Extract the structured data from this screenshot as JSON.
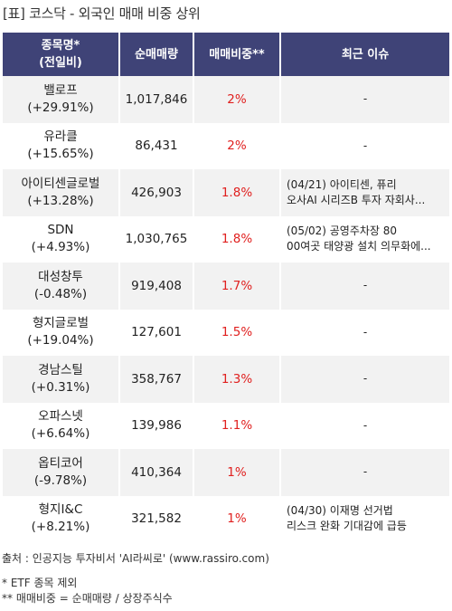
{
  "title": "[표] 코스닥 - 외국인 매매 비중 상위",
  "headers": {
    "name_line1": "종목명*",
    "name_line2": "(전일비)",
    "volume": "순매매량",
    "ratio": "매매비중**",
    "issue": "최근 이슈"
  },
  "rows": [
    {
      "name": "밸로프",
      "change": "(+29.91%)",
      "volume": "1,017,846",
      "ratio": "2%",
      "issue1": "-",
      "issue2": ""
    },
    {
      "name": "유라클",
      "change": "(+15.65%)",
      "volume": "86,431",
      "ratio": "2%",
      "issue1": "-",
      "issue2": ""
    },
    {
      "name": "아이티센글로벌",
      "change": "(+13.28%)",
      "volume": "426,903",
      "ratio": "1.8%",
      "issue1": "(04/21) 아이티센, 퓨리",
      "issue2": "오사AI 시리즈B 투자 자회사..."
    },
    {
      "name": "SDN",
      "change": "(+4.93%)",
      "volume": "1,030,765",
      "ratio": "1.8%",
      "issue1": "(05/02) 공영주차장 80",
      "issue2": "00여곳 태양광 설치 의무화에..."
    },
    {
      "name": "대성창투",
      "change": "(-0.48%)",
      "volume": "919,408",
      "ratio": "1.7%",
      "issue1": "-",
      "issue2": ""
    },
    {
      "name": "형지글로벌",
      "change": "(+19.04%)",
      "volume": "127,601",
      "ratio": "1.5%",
      "issue1": "-",
      "issue2": ""
    },
    {
      "name": "경남스틸",
      "change": "(+0.31%)",
      "volume": "358,767",
      "ratio": "1.3%",
      "issue1": "-",
      "issue2": ""
    },
    {
      "name": "오파스넷",
      "change": "(+6.64%)",
      "volume": "139,986",
      "ratio": "1.1%",
      "issue1": "-",
      "issue2": ""
    },
    {
      "name": "옵티코어",
      "change": "(-9.78%)",
      "volume": "410,364",
      "ratio": "1%",
      "issue1": "-",
      "issue2": ""
    },
    {
      "name": "형지I&C",
      "change": "(+8.21%)",
      "volume": "321,582",
      "ratio": "1%",
      "issue1": "(04/30) 이재명 선거법",
      "issue2": "리스크 완화 기대감에 급등"
    }
  ],
  "footer": {
    "source": "출처 : 인공지능 투자비서 'AI라씨로' (www.rassiro.com)",
    "note1": "* ETF 종목 제외",
    "note2": "** 매매비중 = 순매매량 / 상장주식수"
  },
  "colors": {
    "header_bg": "#3f4377",
    "ratio_text": "#e0201f",
    "row_alt": "#f2f2f2"
  }
}
